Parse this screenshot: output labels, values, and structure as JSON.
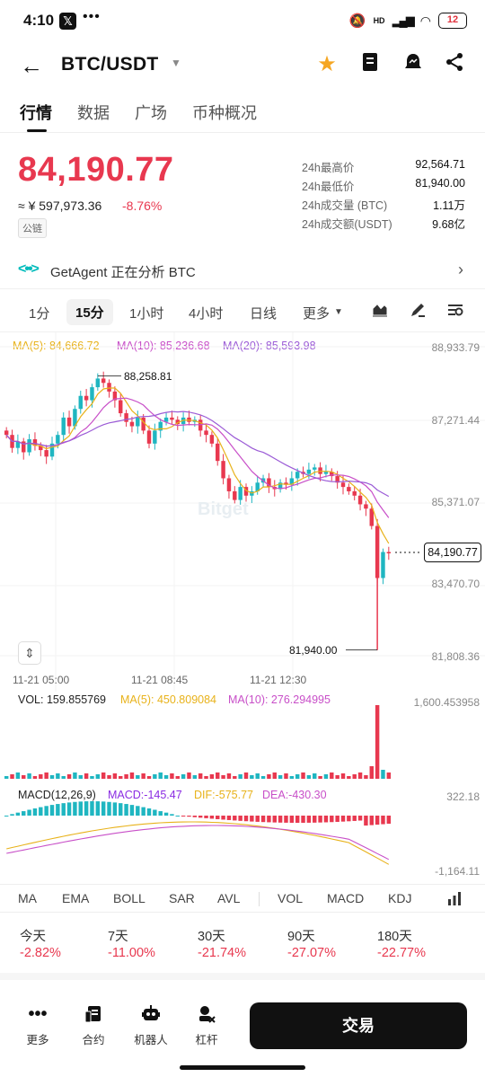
{
  "status": {
    "time": "4:10",
    "battery": "12",
    "signal_text": "HD"
  },
  "header": {
    "pair": "BTC/USDT"
  },
  "tabs": [
    "行情",
    "数据",
    "广场",
    "币种概况"
  ],
  "price": {
    "last": "84,190.77",
    "cny": "≈ ¥ 597,973.36",
    "change": "-8.76%",
    "chain_badge": "公链"
  },
  "stats": [
    {
      "label": "24h最高价",
      "value": "92,564.71"
    },
    {
      "label": "24h最低价",
      "value": "81,940.00"
    },
    {
      "label": "24h成交量 (BTC)",
      "value": "1.11万"
    },
    {
      "label": "24h成交额(USDT)",
      "value": "9.68亿"
    }
  ],
  "agent": {
    "text": "GetAgent 正在分析 BTC"
  },
  "timeframes": [
    "1分",
    "15分",
    "1小时",
    "4小时",
    "日线",
    "更多"
  ],
  "ma_legend": [
    {
      "text": "MA(5): 84,666.72",
      "color": "#e8b21a"
    },
    {
      "text": "MA(10): 85,236.68",
      "color": "#c84fc8"
    },
    {
      "text": "MA(20): 85,593.98",
      "color": "#9b5bd6"
    }
  ],
  "y_labels": [
    "88,933.79",
    "87,271.44",
    "85,371.07",
    "83,470.70",
    "81,808.36"
  ],
  "annotations": {
    "high": "88,258.81",
    "low": "81,940.00",
    "current": "84,190.77"
  },
  "time_labels": [
    "11-21 05:00",
    "11-21 08:45",
    "11-21 12:30"
  ],
  "watermark": "Bitget",
  "vol_legend": [
    {
      "text": "VOL: 159.855769",
      "color": "#222"
    },
    {
      "text": "MA(5): 450.809084",
      "color": "#e8b21a"
    },
    {
      "text": "MA(10): 276.294995",
      "color": "#c84fc8"
    }
  ],
  "vol_max": "1,600.453958",
  "macd_legend": [
    {
      "text": "MACD(12,26,9)",
      "color": "#222"
    },
    {
      "text": "MACD:-145.47",
      "color": "#8a2be2"
    },
    {
      "text": "DIF:-575.77",
      "color": "#e8b21a"
    },
    {
      "text": "DEA:-430.30",
      "color": "#c84fc8"
    }
  ],
  "macd_top": "322.18",
  "macd_bottom": "-1,164.11",
  "indicators": [
    "MA",
    "EMA",
    "BOLL",
    "SAR",
    "AVL",
    "VOL",
    "MACD",
    "KDJ"
  ],
  "performance": [
    {
      "label": "今天",
      "value": "-2.82%"
    },
    {
      "label": "7天",
      "value": "-11.00%"
    },
    {
      "label": "30天",
      "value": "-21.74%"
    },
    {
      "label": "90天",
      "value": "-27.07%"
    },
    {
      "label": "180天",
      "value": "-22.77%"
    }
  ],
  "bottom_nav": [
    {
      "label": "更多",
      "icon": "more-dots-icon"
    },
    {
      "label": "合约",
      "icon": "contract-icon"
    },
    {
      "label": "机器人",
      "icon": "robot-icon"
    },
    {
      "label": "杠杆",
      "icon": "leverage-icon"
    }
  ],
  "trade_button": "交易",
  "colors": {
    "up": "#1fb6c1",
    "down": "#e8384f",
    "ma5": "#e8b21a",
    "ma10": "#c84fc8",
    "ma20": "#9b5bd6"
  }
}
